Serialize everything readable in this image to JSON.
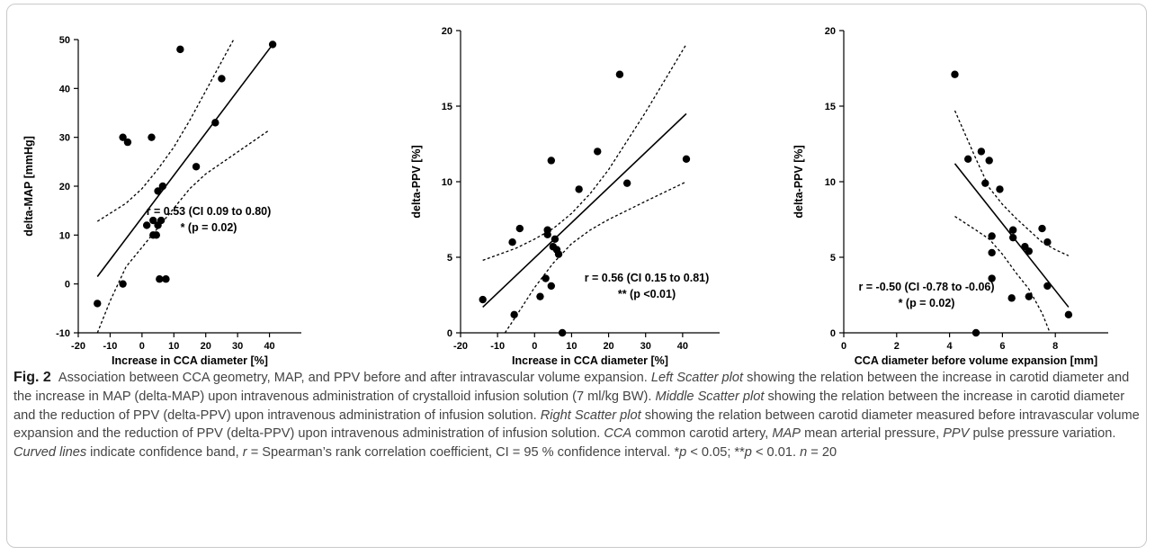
{
  "figure": {
    "label": "Fig. 2",
    "caption_runs": [
      {
        "t": "Association between CCA geometry, MAP, and PPV before and after intravascular volume expansion. ",
        "i": false
      },
      {
        "t": "Left Scatter plot",
        "i": true
      },
      {
        "t": " showing the relation between the increase in carotid diameter and the increase in MAP (delta-MAP) upon intravenous administration of crystalloid infusion solution (7 ml/kg BW). ",
        "i": false
      },
      {
        "t": "Middle Scatter plot",
        "i": true
      },
      {
        "t": " showing the relation between the increase in carotid diameter and the reduction of PPV (delta-PPV) upon intravenous administration of infusion solution. ",
        "i": false
      },
      {
        "t": "Right Scatter plot",
        "i": true
      },
      {
        "t": " showing the relation between carotid diameter measured before intravascular volume expansion and the reduction of PPV (delta-PPV) upon intravenous administration of infusion solution. ",
        "i": false
      },
      {
        "t": "CCA",
        "i": true
      },
      {
        "t": " common carotid artery, ",
        "i": false
      },
      {
        "t": "MAP",
        "i": true
      },
      {
        "t": " mean arterial pressure, ",
        "i": false
      },
      {
        "t": "PPV",
        "i": true
      },
      {
        "t": " pulse pressure variation. ",
        "i": false
      },
      {
        "t": "Curved lines",
        "i": true
      },
      {
        "t": " indicate confidence band, ",
        "i": false
      },
      {
        "t": "r",
        "i": true
      },
      {
        "t": " = Spearman’s rank correlation coefficient, CI = 95 % confidence interval. *",
        "i": false
      },
      {
        "t": "p",
        "i": true
      },
      {
        "t": " < 0.05; **",
        "i": false
      },
      {
        "t": "p",
        "i": true
      },
      {
        "t": " < 0.01. ",
        "i": false
      },
      {
        "t": "n",
        "i": true
      },
      {
        "t": " = 20",
        "i": false
      }
    ]
  },
  "chart_data": [
    {
      "type": "scatter",
      "xlabel": "Increase in CCA diameter [%]",
      "ylabel": "delta-MAP [mmHg]",
      "xlim": [
        -20,
        50
      ],
      "ylim": [
        -10,
        50
      ],
      "xticks": [
        -20,
        -10,
        0,
        10,
        20,
        30,
        40
      ],
      "yticks": [
        -10,
        0,
        10,
        20,
        30,
        40,
        50
      ],
      "annotation": [
        "r = 0.53 (CI 0.09 to 0.80)",
        "* (p = 0.02)"
      ],
      "points": [
        [
          -14,
          -4
        ],
        [
          -6,
          30
        ],
        [
          -4.5,
          29
        ],
        [
          -6,
          0
        ],
        [
          1.5,
          12
        ],
        [
          3,
          30
        ],
        [
          3.5,
          13
        ],
        [
          3.5,
          10
        ],
        [
          4.5,
          10
        ],
        [
          5,
          12
        ],
        [
          5,
          19
        ],
        [
          5.5,
          1
        ],
        [
          6,
          13
        ],
        [
          6.5,
          20
        ],
        [
          7.5,
          1
        ],
        [
          12,
          48
        ],
        [
          17,
          24
        ],
        [
          23,
          33
        ],
        [
          25,
          42
        ],
        [
          41,
          49
        ]
      ],
      "fit_line": [
        [
          -14,
          1.5
        ],
        [
          41,
          49
        ]
      ],
      "ci_upper": [
        [
          -14,
          12.8
        ],
        [
          -5,
          16.5
        ],
        [
          0,
          19.5
        ],
        [
          5,
          23.5
        ],
        [
          10,
          28
        ],
        [
          15,
          33.5
        ],
        [
          20,
          39.5
        ],
        [
          25,
          45.5
        ],
        [
          29,
          50.3
        ]
      ],
      "ci_lower": [
        [
          -14,
          -10
        ],
        [
          -10,
          -3.5
        ],
        [
          -5,
          3.5
        ],
        [
          0,
          7.5
        ],
        [
          5,
          11.5
        ],
        [
          10,
          15.5
        ],
        [
          15,
          19.5
        ],
        [
          20,
          22.5
        ],
        [
          30,
          27
        ],
        [
          40,
          31.5
        ]
      ]
    },
    {
      "type": "scatter",
      "xlabel": "Increase in CCA diameter [%]",
      "ylabel": "delta-PPV [%]",
      "xlim": [
        -20,
        50
      ],
      "ylim": [
        0,
        20
      ],
      "xticks": [
        -20,
        -10,
        0,
        10,
        20,
        30,
        40
      ],
      "yticks": [
        0,
        5,
        10,
        15,
        20
      ],
      "annotation": [
        "r = 0.56 (CI 0.15 to 0.81)",
        "** (p <0.01)"
      ],
      "points": [
        [
          -14,
          2.2
        ],
        [
          -6,
          6
        ],
        [
          -5.5,
          1.2
        ],
        [
          -4,
          6.9
        ],
        [
          1.5,
          2.4
        ],
        [
          3,
          3.6
        ],
        [
          3.5,
          6.8
        ],
        [
          3.5,
          6.5
        ],
        [
          4.5,
          11.4
        ],
        [
          4.5,
          3.1
        ],
        [
          5,
          5.7
        ],
        [
          5.5,
          6.2
        ],
        [
          6,
          5.5
        ],
        [
          6.5,
          5.2
        ],
        [
          7.5,
          0
        ],
        [
          12,
          9.5
        ],
        [
          17,
          12
        ],
        [
          23,
          17.1
        ],
        [
          25,
          9.9
        ],
        [
          41,
          11.5
        ]
      ],
      "fit_line": [
        [
          -14,
          1.7
        ],
        [
          41,
          14.5
        ]
      ],
      "ci_upper": [
        [
          -14,
          4.8
        ],
        [
          -5,
          5.6
        ],
        [
          0,
          6.2
        ],
        [
          5,
          6.9
        ],
        [
          10,
          7.9
        ],
        [
          15,
          9.2
        ],
        [
          20,
          10.8
        ],
        [
          30,
          14.6
        ],
        [
          41,
          19.1
        ]
      ],
      "ci_lower": [
        [
          -8,
          0
        ],
        [
          -5,
          1.1
        ],
        [
          0,
          3
        ],
        [
          5,
          4.6
        ],
        [
          10,
          5.9
        ],
        [
          15,
          6.8
        ],
        [
          20,
          7.5
        ],
        [
          30,
          8.7
        ],
        [
          41,
          10
        ]
      ]
    },
    {
      "type": "scatter",
      "xlabel": "CCA diameter before volume expansion [mm]",
      "ylabel": "delta-PPV [%]",
      "xlim": [
        0,
        10
      ],
      "ylim": [
        0,
        20
      ],
      "xticks": [
        0,
        2,
        4,
        6,
        8
      ],
      "yticks": [
        0,
        5,
        10,
        15,
        20
      ],
      "annotation": [
        "r = -0.50 (CI -0.78 to -0.06)",
        "* (p = 0.02)"
      ],
      "points": [
        [
          4.2,
          17.1
        ],
        [
          4.7,
          11.5
        ],
        [
          5.0,
          0
        ],
        [
          5.2,
          12
        ],
        [
          5.35,
          9.9
        ],
        [
          5.5,
          11.4
        ],
        [
          5.6,
          6.4
        ],
        [
          5.6,
          5.3
        ],
        [
          5.6,
          3.6
        ],
        [
          5.9,
          9.5
        ],
        [
          6.35,
          2.3
        ],
        [
          6.4,
          6.8
        ],
        [
          6.4,
          6.3
        ],
        [
          6.85,
          5.7
        ],
        [
          7,
          5.4
        ],
        [
          7,
          2.4
        ],
        [
          7.5,
          6.9
        ],
        [
          7.7,
          6
        ],
        [
          7.7,
          3.1
        ],
        [
          8.5,
          1.2
        ]
      ],
      "fit_line": [
        [
          4.2,
          11.2
        ],
        [
          8.5,
          1.7
        ]
      ],
      "ci_upper": [
        [
          4.2,
          14.7
        ],
        [
          5,
          11.5
        ],
        [
          5.5,
          9.6
        ],
        [
          6,
          8.5
        ],
        [
          6.5,
          7.6
        ],
        [
          7,
          6.8
        ],
        [
          7.5,
          6
        ],
        [
          8,
          5.5
        ],
        [
          8.5,
          5.1
        ]
      ],
      "ci_lower": [
        [
          4.2,
          7.7
        ],
        [
          5,
          6.8
        ],
        [
          5.5,
          6.2
        ],
        [
          6,
          5.2
        ],
        [
          6.5,
          4
        ],
        [
          7,
          2.9
        ],
        [
          7.5,
          1.3
        ],
        [
          7.8,
          0
        ]
      ]
    }
  ]
}
